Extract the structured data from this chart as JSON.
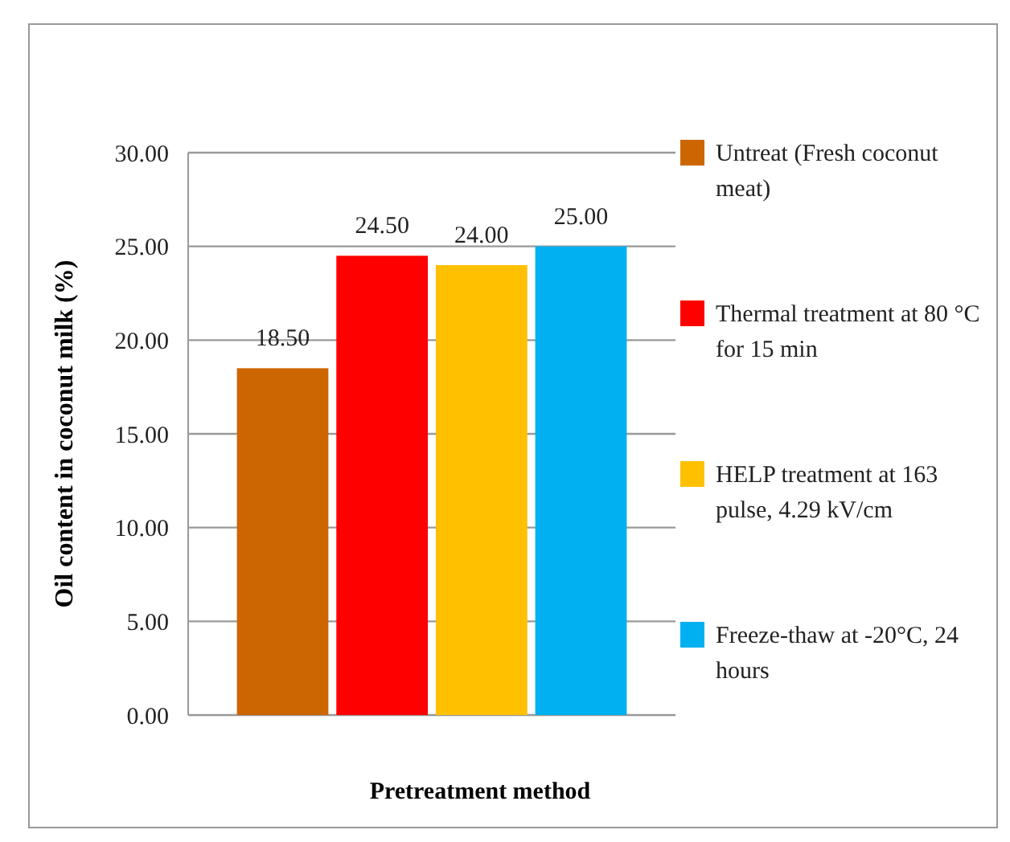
{
  "chart_data": {
    "type": "bar",
    "xlabel": "Pretreatment method",
    "ylabel": "Oil content in coconut milk (%)",
    "categories": [
      null
    ],
    "series": [
      {
        "name": "Untreat (Fresh coconut meat)",
        "color": "#cc6600",
        "values": [
          18.5
        ],
        "value_labels": [
          "18.50"
        ]
      },
      {
        "name": "Thermal treatment at 80 °C for 15 min",
        "color": "#ff0000",
        "values": [
          24.5
        ],
        "value_labels": [
          "24.50"
        ]
      },
      {
        "name": "HELP treatment at 163 pulse, 4.29 kV/cm",
        "color": "#ffc000",
        "values": [
          24
        ],
        "value_labels": [
          "24.00"
        ]
      },
      {
        "name": "Freeze-thaw at -20°C, 24 hours",
        "color": "#00b0f0",
        "values": [
          25
        ],
        "value_labels": [
          "25.00"
        ]
      }
    ],
    "ylim": [
      0,
      30
    ],
    "yticks": [
      {
        "value": 0,
        "label": "0.00"
      },
      {
        "value": 5,
        "label": "5.00"
      },
      {
        "value": 10,
        "label": "10.00"
      },
      {
        "value": 15,
        "label": "15.00"
      },
      {
        "value": 20,
        "label": "20.00"
      },
      {
        "value": 25,
        "label": "25.00"
      },
      {
        "value": 30,
        "label": "30.00"
      }
    ],
    "grid": "y",
    "legend": "right"
  }
}
